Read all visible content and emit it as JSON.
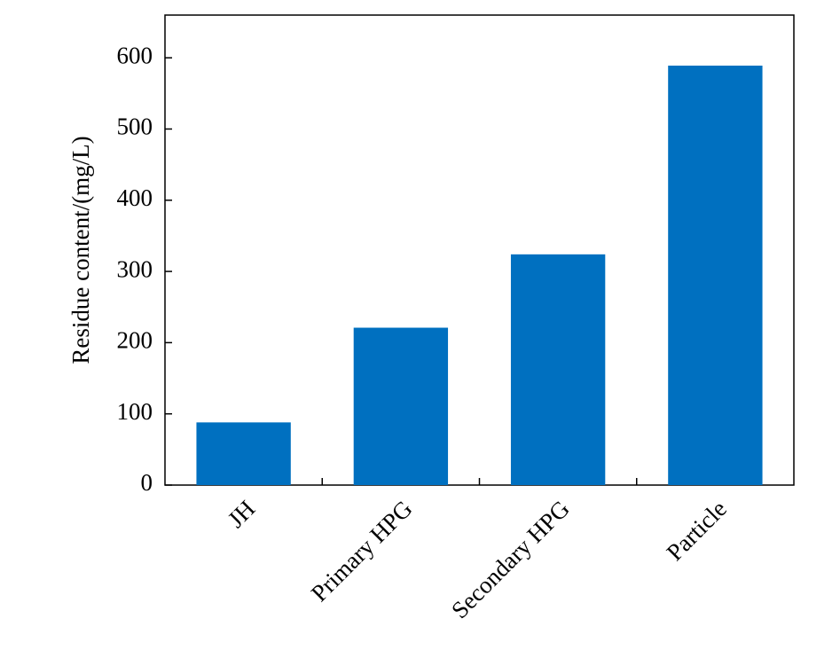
{
  "chart_data": {
    "type": "bar",
    "y_label": "Residue content/(mg/L)",
    "categories": [
      "JH",
      "Primary HPG",
      "Secondary HPG",
      "Particle"
    ],
    "values": [
      88,
      221,
      324,
      589
    ],
    "color": "#0070c0",
    "ylim": [
      0,
      660
    ],
    "yticks": [
      0,
      100,
      200,
      300,
      400,
      500,
      600
    ],
    "grid": false
  }
}
